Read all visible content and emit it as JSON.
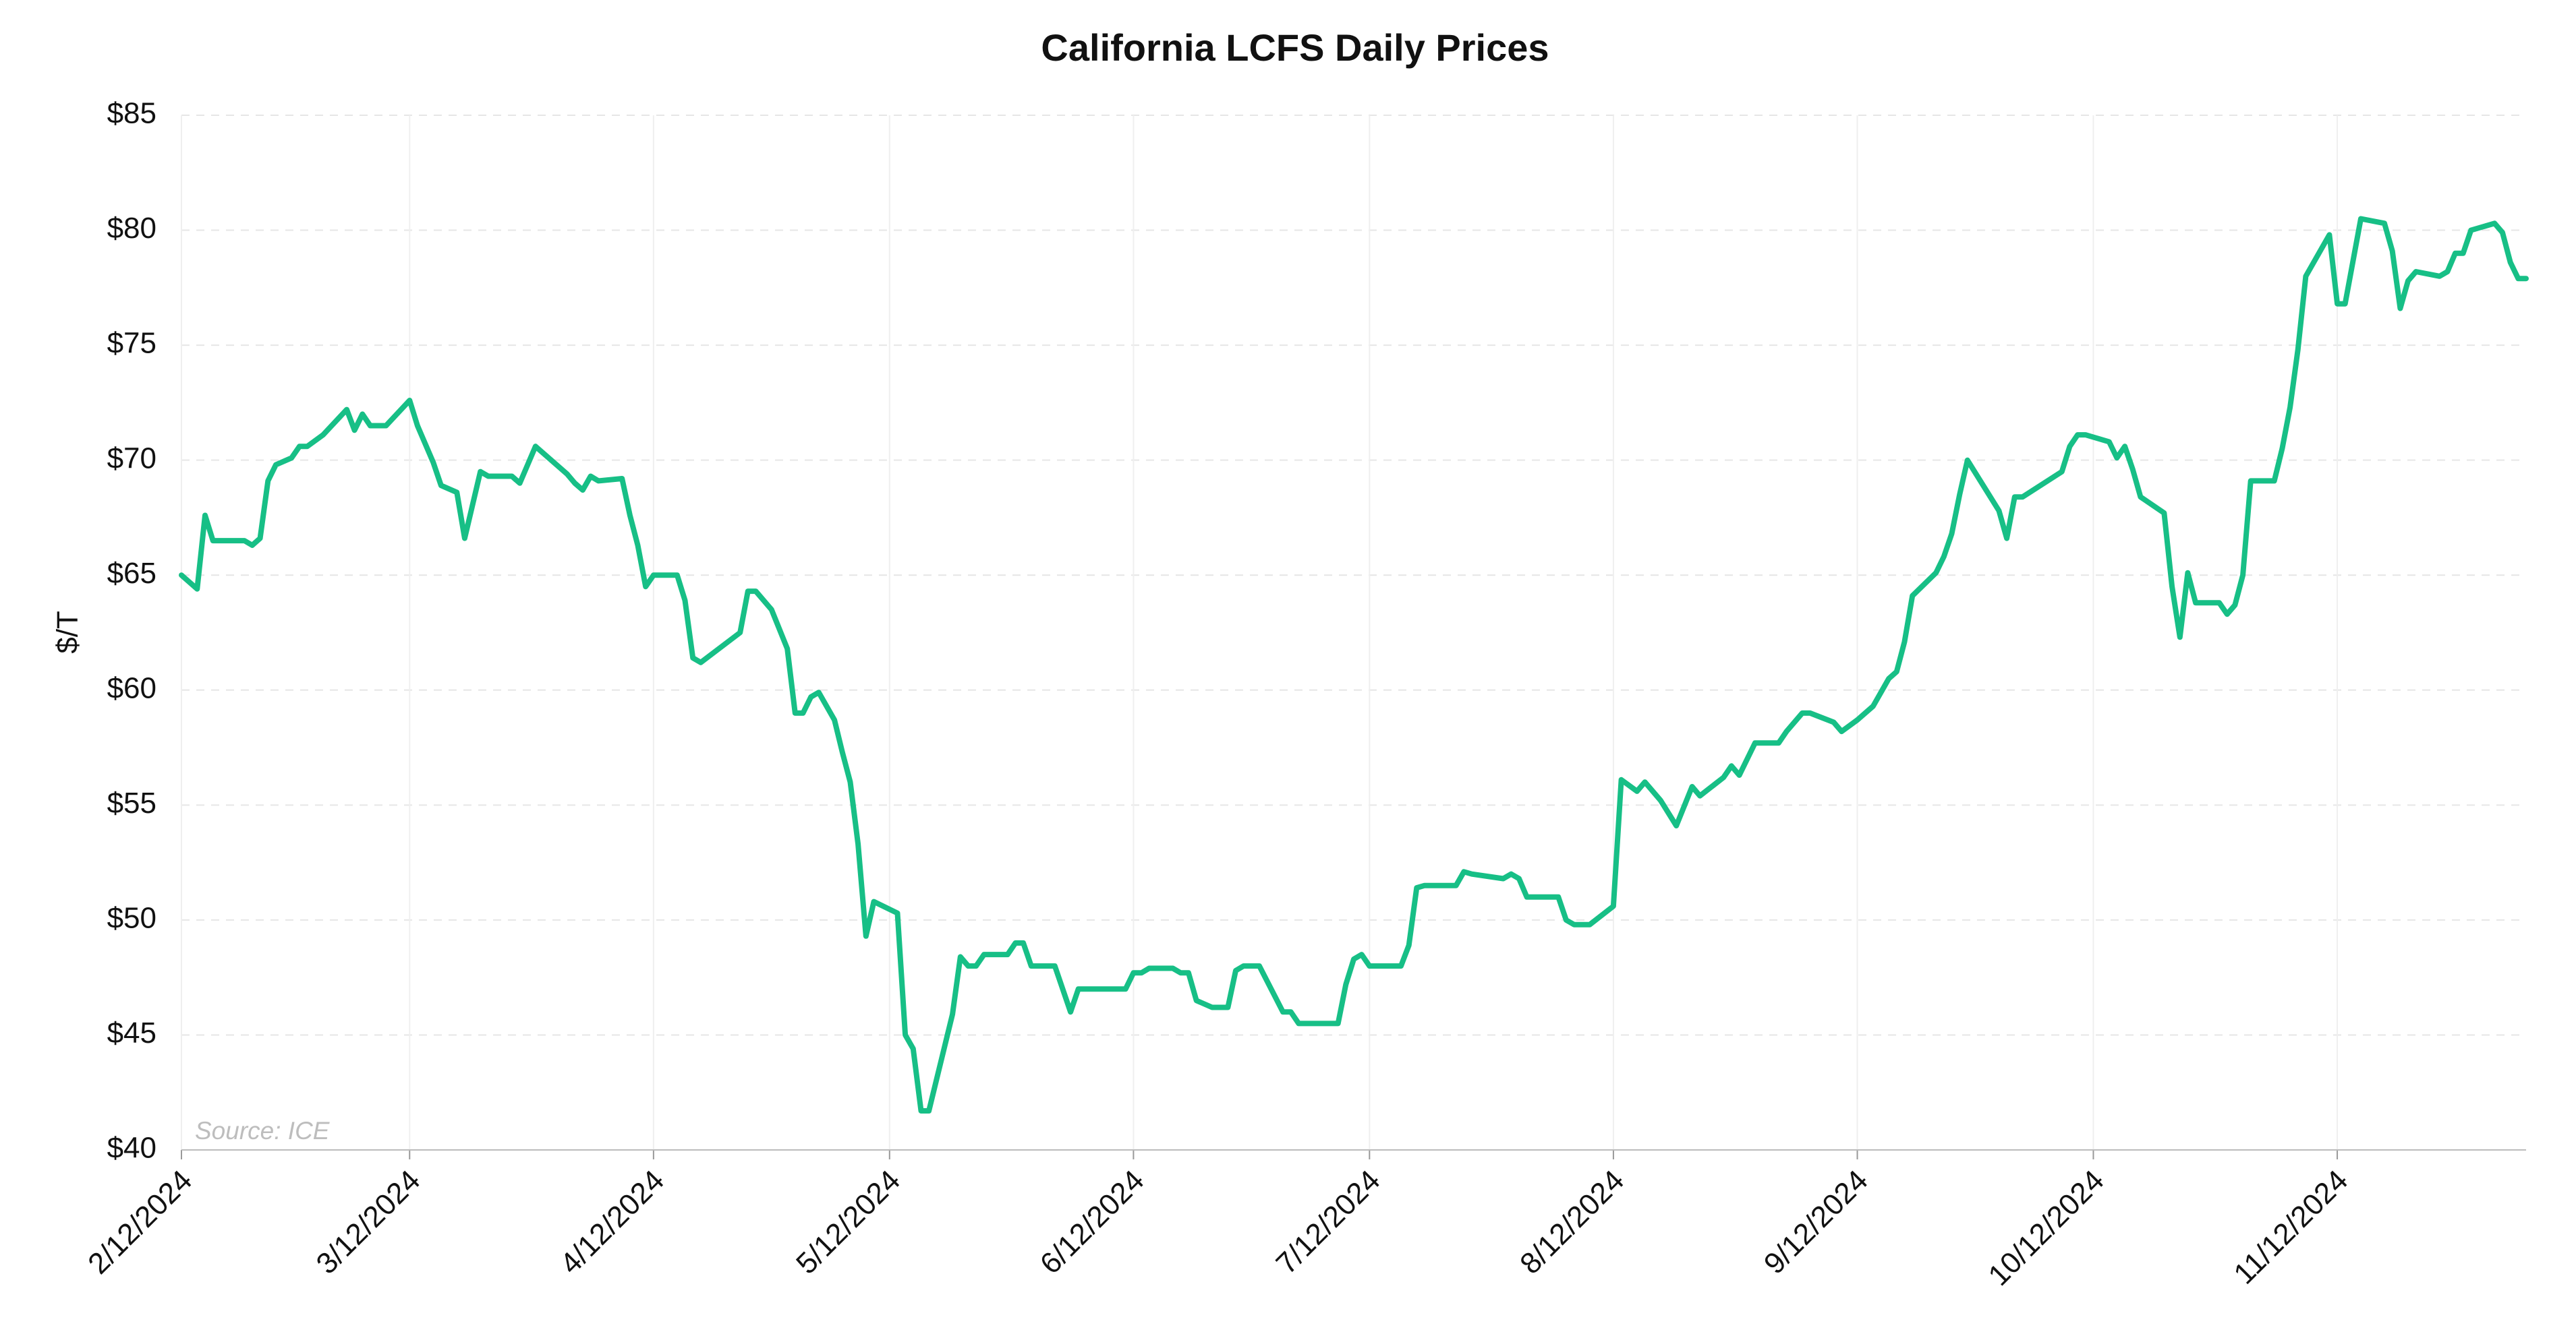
{
  "chart_data": {
    "type": "line",
    "title": "California LCFS Daily Prices",
    "ylabel": "$/T",
    "annotation": "Source: ICE",
    "x": [
      "2/12/2024",
      "2/14/2024",
      "2/15/2024",
      "2/16/2024",
      "2/20/2024",
      "2/21/2024",
      "2/22/2024",
      "2/23/2024",
      "2/24/2024",
      "2/26/2024",
      "2/27/2024",
      "2/28/2024",
      "3/1/2024",
      "3/4/2024",
      "3/5/2024",
      "3/6/2024",
      "3/7/2024",
      "3/9/2024",
      "3/12/2024",
      "3/13/2024",
      "3/15/2024",
      "3/16/2024",
      "3/18/2024",
      "3/19/2024",
      "3/21/2024",
      "3/22/2024",
      "3/25/2024",
      "3/26/2024",
      "3/28/2024",
      "4/1/2024",
      "4/2/2024",
      "4/3/2024",
      "4/4/2024",
      "4/5/2024",
      "4/8/2024",
      "4/9/2024",
      "4/10/2024",
      "4/11/2024",
      "4/12/2024",
      "4/15/2024",
      "4/16/2024",
      "4/17/2024",
      "4/18/2024",
      "4/23/2024",
      "4/24/2024",
      "4/25/2024",
      "4/27/2024",
      "4/29/2024",
      "4/30/2024",
      "5/1/2024",
      "5/2/2024",
      "5/3/2024",
      "5/5/2024",
      "5/6/2024",
      "5/7/2024",
      "5/8/2024",
      "5/9/2024",
      "5/10/2024",
      "5/13/2024",
      "5/14/2024",
      "5/15/2024",
      "5/16/2024",
      "5/17/2024",
      "5/20/2024",
      "5/21/2024",
      "5/22/2024",
      "5/23/2024",
      "5/24/2024",
      "5/27/2024",
      "5/28/2024",
      "5/29/2024",
      "5/30/2024",
      "6/2/2024",
      "6/4/2024",
      "6/5/2024",
      "6/11/2024",
      "6/12/2024",
      "6/13/2024",
      "6/14/2024",
      "6/17/2024",
      "6/18/2024",
      "6/19/2024",
      "6/20/2024",
      "6/22/2024",
      "6/24/2024",
      "6/25/2024",
      "6/26/2024",
      "6/28/2024",
      "7/1/2024",
      "7/2/2024",
      "7/3/2024",
      "7/8/2024",
      "7/9/2024",
      "7/10/2024",
      "7/11/2024",
      "7/12/2024",
      "7/16/2024",
      "7/17/2024",
      "7/18/2024",
      "7/19/2024",
      "7/23/2024",
      "7/24/2024",
      "7/25/2024",
      "7/29/2024",
      "7/30/2024",
      "7/31/2024",
      "8/1/2024",
      "8/5/2024",
      "8/6/2024",
      "8/7/2024",
      "8/9/2024",
      "8/12/2024",
      "8/13/2024",
      "8/15/2024",
      "8/16/2024",
      "8/18/2024",
      "8/20/2024",
      "8/22/2024",
      "8/23/2024",
      "8/26/2024",
      "8/27/2024",
      "8/28/2024",
      "8/30/2024",
      "9/2/2024",
      "9/3/2024",
      "9/5/2024",
      "9/6/2024",
      "9/9/2024",
      "9/10/2024",
      "9/12/2024",
      "9/14/2024",
      "9/16/2024",
      "9/17/2024",
      "9/18/2024",
      "9/19/2024",
      "9/22/2024",
      "9/23/2024",
      "9/24/2024",
      "9/25/2024",
      "9/26/2024",
      "9/28/2024",
      "9/30/2024",
      "10/1/2024",
      "10/2/2024",
      "10/3/2024",
      "10/8/2024",
      "10/9/2024",
      "10/10/2024",
      "10/11/2024",
      "10/14/2024",
      "10/15/2024",
      "10/16/2024",
      "10/17/2024",
      "10/18/2024",
      "10/21/2024",
      "10/22/2024",
      "10/23/2024",
      "10/24/2024",
      "10/25/2024",
      "10/28/2024",
      "10/29/2024",
      "10/30/2024",
      "10/31/2024",
      "11/1/2024",
      "11/4/2024",
      "11/5/2024",
      "11/6/2024",
      "11/7/2024",
      "11/8/2024",
      "11/11/2024",
      "11/12/2024",
      "11/13/2024",
      "11/15/2024",
      "11/18/2024",
      "11/19/2024",
      "11/20/2024",
      "11/21/2024",
      "11/22/2024",
      "11/25/2024",
      "11/26/2024",
      "11/27/2024",
      "11/28/2024",
      "11/29/2024",
      "12/2/2024",
      "12/3/2024",
      "12/4/2024",
      "12/5/2024",
      "12/6/2024"
    ],
    "series": [
      {
        "name": "LCFS",
        "color": "#17bf86",
        "values": [
          65.0,
          64.4,
          67.6,
          66.5,
          66.5,
          66.3,
          66.6,
          69.1,
          69.8,
          70.1,
          70.6,
          70.6,
          71.1,
          72.2,
          71.3,
          72.0,
          71.5,
          71.5,
          72.6,
          71.5,
          69.9,
          68.9,
          68.6,
          66.6,
          69.5,
          69.3,
          69.3,
          69.0,
          70.6,
          69.4,
          69.0,
          68.7,
          69.3,
          69.1,
          69.2,
          67.6,
          66.3,
          64.5,
          65.0,
          65.0,
          63.9,
          61.4,
          61.2,
          62.5,
          64.3,
          64.3,
          63.5,
          61.8,
          59.0,
          59.0,
          59.7,
          59.9,
          58.7,
          57.3,
          56.0,
          53.3,
          49.3,
          50.8,
          50.3,
          45.0,
          44.4,
          41.7,
          41.7,
          45.9,
          48.4,
          48.0,
          48.0,
          48.5,
          48.5,
          49.0,
          49.0,
          48.0,
          48.0,
          46.0,
          47.0,
          47.0,
          47.7,
          47.7,
          47.9,
          47.9,
          47.7,
          47.7,
          46.5,
          46.2,
          46.2,
          47.8,
          48.0,
          48.0,
          46.0,
          46.0,
          45.5,
          45.5,
          47.2,
          48.3,
          48.5,
          48.0,
          48.0,
          48.9,
          51.4,
          51.5,
          51.5,
          52.1,
          52.0,
          51.8,
          52.0,
          51.8,
          51.0,
          51.0,
          50.0,
          49.8,
          49.8,
          50.6,
          56.1,
          55.6,
          56.0,
          55.2,
          54.1,
          55.8,
          55.4,
          56.2,
          56.7,
          56.3,
          57.7,
          57.7,
          58.2,
          59.0,
          59.0,
          58.6,
          58.2,
          58.7,
          59.3,
          60.5,
          60.8,
          62.1,
          64.1,
          65.1,
          65.8,
          66.8,
          68.5,
          70.0,
          68.9,
          67.8,
          66.6,
          68.4,
          68.4,
          69.5,
          70.6,
          71.1,
          71.1,
          70.8,
          70.1,
          70.6,
          69.6,
          68.4,
          67.7,
          64.5,
          62.3,
          65.1,
          63.8,
          63.8,
          63.3,
          63.7,
          65.0,
          69.1,
          69.1,
          70.5,
          72.3,
          74.8,
          78.0,
          79.8,
          76.8,
          76.8,
          80.5,
          80.3,
          79.1,
          76.6,
          77.8,
          78.2,
          78.0,
          78.2,
          79.0,
          79.0,
          80.0,
          80.3,
          79.9,
          78.6,
          77.9,
          77.9
        ]
      }
    ],
    "xlim": [
      "2/12/2024",
      "12/6/2024"
    ],
    "xticks": [
      "2/12/2024",
      "3/12/2024",
      "4/12/2024",
      "5/12/2024",
      "6/12/2024",
      "7/12/2024",
      "8/12/2024",
      "9/12/2024",
      "10/12/2024",
      "11/12/2024"
    ],
    "ylim": [
      40,
      85
    ],
    "yticks": [
      {
        "value": 40,
        "label": "$40"
      },
      {
        "value": 45,
        "label": "$45"
      },
      {
        "value": 50,
        "label": "$50"
      },
      {
        "value": 55,
        "label": "$55"
      },
      {
        "value": 60,
        "label": "$60"
      },
      {
        "value": 65,
        "label": "$65"
      },
      {
        "value": 70,
        "label": "$70"
      },
      {
        "value": 75,
        "label": "$75"
      },
      {
        "value": 80,
        "label": "$80"
      },
      {
        "value": 85,
        "label": "$85"
      }
    ],
    "grid": true
  }
}
